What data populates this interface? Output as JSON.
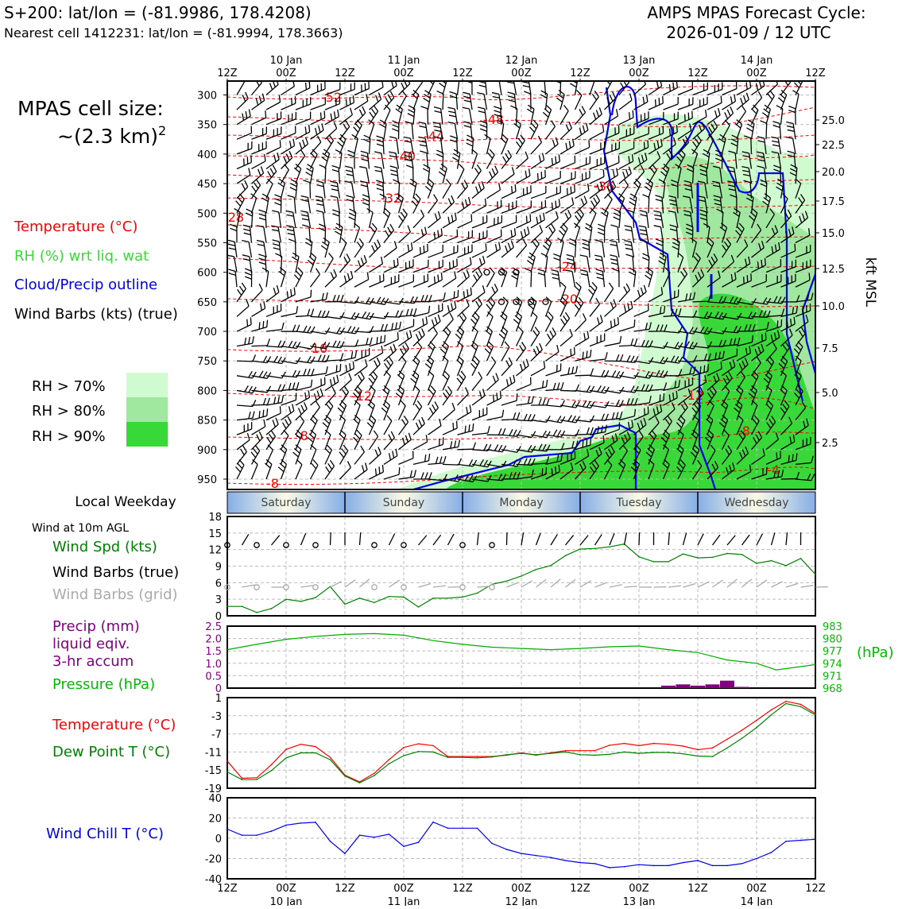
{
  "header": {
    "title_line1": "S+200: lat/lon = (-81.9986, 178.4208)",
    "title_line2": "Nearest cell 1412231: lat/lon = (-81.9994, 178.3663)",
    "cycle_line1": "AMPS MPAS Forecast Cycle:",
    "cycle_line2": "2026-01-09 / 12 UTC"
  },
  "cell_size": {
    "line1": "MPAS cell size:",
    "line2": "~(2.3 km)",
    "sup": "2"
  },
  "legend": {
    "temperature": "Temperature (°C)",
    "rh": "RH (%) wrt liq. wat",
    "cloud": "Cloud/Precip outline",
    "barbs": "Wind Barbs (kts) (true)",
    "rh70": "RH > 70%",
    "rh80": "RH > 80%",
    "rh90": "RH > 90%",
    "colors": {
      "rh70": "#d0fad0",
      "rh80": "#a0e8a0",
      "rh90": "#38d838",
      "temp": "#ff0000",
      "cloud": "#0000ee"
    }
  },
  "time_axis": {
    "top_ticks": [
      "12Z",
      "00Z",
      "12Z",
      "00Z",
      "12Z",
      "00Z",
      "12Z",
      "00Z",
      "12Z",
      "00Z",
      "12Z"
    ],
    "bottom_ticks": [
      "12Z",
      "00Z",
      "12Z",
      "00Z",
      "12Z",
      "00Z",
      "12Z",
      "00Z",
      "12Z",
      "00Z",
      "12Z"
    ],
    "dates": [
      "10 Jan",
      "11 Jan",
      "12 Jan",
      "13 Jan",
      "14 Jan"
    ]
  },
  "weekday": {
    "label": "Local Weekday",
    "days": [
      "Saturday",
      "Sunday",
      "Monday",
      "Tuesday",
      "Wednesday"
    ]
  },
  "cross_section": {
    "pressure_ticks": [
      300,
      350,
      400,
      450,
      500,
      550,
      600,
      650,
      700,
      750,
      800,
      850,
      900,
      950
    ],
    "kft_label": "kft MSL",
    "kft_ticks": [
      "25.0",
      "22.5",
      "20.0",
      "17.5",
      "15.0",
      "12.5",
      "10.0",
      "7.5",
      "5.0",
      "2.5"
    ],
    "temp_labels": [
      "-52",
      "-48",
      "-44",
      "-40",
      "-36",
      "-32",
      "-28",
      "-24",
      "-20",
      "-16",
      "-12",
      "-12",
      "-8",
      "-8",
      "-8",
      "-4"
    ]
  },
  "surface_wind": {
    "header": "Wind at 10m AGL",
    "spd_label": "Wind Spd (kts)",
    "barbs_true": "Wind Barbs (true)",
    "barbs_grid": "Wind Barbs (grid)",
    "yticks": [
      "18",
      "15",
      "12",
      "9",
      "6",
      "3",
      "0"
    ]
  },
  "precip": {
    "label1": "Precip (mm)",
    "label2": "liquid eqiv.",
    "label3": "3-hr accum",
    "pressure_label": "Pressure (hPa)",
    "hpa_unit": "(hPa)",
    "left_ticks": [
      "2.5",
      "2.0",
      "1.5",
      "1.0",
      "0.5",
      "0"
    ],
    "right_ticks": [
      "983",
      "980",
      "977",
      "974",
      "971",
      "968"
    ]
  },
  "temp_panel": {
    "temp_label": "Temperature (°C)",
    "dew_label": "Dew Point T (°C)",
    "yticks": [
      "1",
      "-3",
      "-7",
      "-11",
      "-15",
      "-19"
    ]
  },
  "wc_panel": {
    "label": "Wind Chill T (°C)",
    "yticks": [
      "40",
      "20",
      "0",
      "-20",
      "-40"
    ]
  },
  "chart_data": [
    {
      "type": "line",
      "title": "Wind Spd (kts)",
      "x_hours": [
        0,
        3,
        6,
        9,
        12,
        15,
        18,
        21,
        24,
        27,
        30,
        33,
        36,
        39,
        42,
        45,
        48,
        51,
        54,
        57,
        60,
        63,
        66,
        69,
        72,
        75,
        78,
        81,
        84,
        87,
        90,
        93,
        96,
        99,
        102,
        105,
        108,
        111,
        114,
        117,
        120
      ],
      "ylim": [
        0,
        18
      ],
      "series": [
        {
          "name": "Wind Spd",
          "color": "#008000",
          "values": [
            1.7,
            1.7,
            0.6,
            1.3,
            3.0,
            2.6,
            3.3,
            5.3,
            2.1,
            3.2,
            2.4,
            3.5,
            3.4,
            1.6,
            3.2,
            3.2,
            3.4,
            4.1,
            5.7,
            6.3,
            7.2,
            8.4,
            9.1,
            10.9,
            12.1,
            12.2,
            12.5,
            13.0,
            10.7,
            9.8,
            9.8,
            11.2,
            10.5,
            10.6,
            11.3,
            11.1,
            9.5,
            10.0,
            9.1,
            10.4,
            7.5
          ]
        }
      ]
    },
    {
      "type": "line",
      "title": "Pressure (hPa)",
      "x_hours": [
        0,
        6,
        12,
        18,
        24,
        30,
        36,
        42,
        48,
        54,
        60,
        66,
        72,
        78,
        84,
        90,
        96,
        102,
        108,
        112,
        120
      ],
      "ylim": [
        968,
        983
      ],
      "series": [
        {
          "name": "Pressure",
          "color": "#00aa00",
          "values": [
            977.3,
            978.6,
            979.8,
            980.5,
            981.0,
            981.2,
            980.8,
            979.5,
            978.6,
            977.9,
            977.6,
            977.3,
            977.6,
            978.0,
            978.2,
            977.3,
            976.6,
            974.8,
            974.0,
            972.4,
            973.7
          ]
        }
      ]
    },
    {
      "type": "bar",
      "title": "Precip (mm)",
      "x_hours": [
        90,
        93,
        96,
        99,
        102,
        105,
        108
      ],
      "values": [
        0.1,
        0.15,
        0.1,
        0.15,
        0.3,
        0.05,
        0.0
      ],
      "ylim": [
        0,
        2.5
      ],
      "color": "#800080"
    },
    {
      "type": "line",
      "title": "Temperature / Dew Point (°C)",
      "x_hours": [
        0,
        3,
        6,
        9,
        12,
        15,
        18,
        21,
        24,
        27,
        30,
        33,
        36,
        39,
        42,
        45,
        48,
        51,
        54,
        57,
        60,
        63,
        66,
        69,
        72,
        75,
        78,
        81,
        84,
        87,
        90,
        93,
        96,
        99,
        102,
        105,
        108,
        111,
        114,
        117,
        120
      ],
      "ylim": [
        -19,
        1
      ],
      "series": [
        {
          "name": "Temperature",
          "color": "#ff0000",
          "values": [
            -13,
            -16.8,
            -16.7,
            -13.8,
            -10.4,
            -9.3,
            -9.8,
            -12.2,
            -16.1,
            -17.6,
            -15.7,
            -12.7,
            -10.0,
            -9.2,
            -9.6,
            -12,
            -12,
            -12,
            -12,
            -11.7,
            -11.2,
            -11.7,
            -11.2,
            -10.7,
            -10.7,
            -10.7,
            -9.5,
            -9.1,
            -9.6,
            -9.1,
            -9.3,
            -9.7,
            -10.5,
            -10.1,
            -8.2,
            -6.2,
            -4.0,
            -1.7,
            0.2,
            -0.5,
            -2.5
          ]
        },
        {
          "name": "Dew Point",
          "color": "#008000",
          "values": [
            -15.4,
            -17.1,
            -17.1,
            -15.1,
            -12.3,
            -11.2,
            -11.2,
            -12.7,
            -16.3,
            -17.8,
            -16.2,
            -13.6,
            -11.8,
            -10.9,
            -11.0,
            -12.2,
            -12.2,
            -12.3,
            -12.1,
            -11.6,
            -11.3,
            -11.6,
            -11.3,
            -11.0,
            -11.6,
            -11.7,
            -11.5,
            -11.0,
            -11.3,
            -11.1,
            -11.1,
            -11.4,
            -11.9,
            -12.0,
            -10.1,
            -8.0,
            -5.6,
            -2.8,
            -0.3,
            -1.0,
            -2.8
          ]
        }
      ]
    },
    {
      "type": "line",
      "title": "Wind Chill T (°C)",
      "x_hours": [
        0,
        3,
        6,
        9,
        12,
        15,
        18,
        21,
        24,
        27,
        30,
        33,
        36,
        39,
        42,
        45,
        48,
        51,
        54,
        57,
        60,
        63,
        66,
        69,
        72,
        75,
        78,
        81,
        84,
        87,
        90,
        93,
        96,
        99,
        102,
        105,
        108,
        111,
        114,
        117,
        120
      ],
      "ylim": [
        -40,
        40
      ],
      "series": [
        {
          "name": "Wind Chill",
          "color": "#0000ee",
          "values": [
            9,
            3,
            3,
            7,
            13,
            15,
            15.8,
            -3,
            -15,
            3,
            1,
            4,
            -8,
            -4,
            16,
            10,
            10,
            10,
            -5,
            -11,
            -15,
            -17,
            -19,
            -22,
            -24,
            -25,
            -29,
            -28,
            -26,
            -27,
            -27,
            -24,
            -22,
            -27,
            -27,
            -25,
            -20,
            -14,
            -3,
            -2,
            -1
          ]
        }
      ]
    }
  ]
}
